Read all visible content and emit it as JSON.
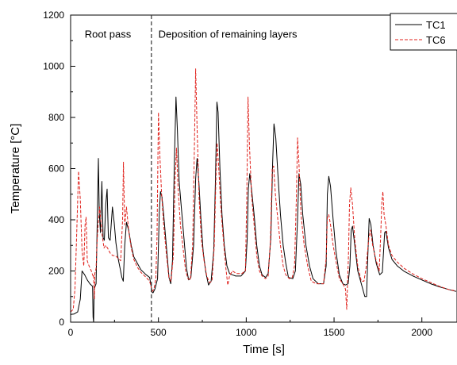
{
  "chart_data": {
    "type": "line",
    "xlabel": "Time [s]",
    "ylabel": "Temperature [°C]",
    "xlim": [
      0,
      2200
    ],
    "ylim": [
      0,
      1200
    ],
    "x_ticks": [
      0,
      500,
      1000,
      1500,
      2000
    ],
    "y_ticks": [
      0,
      200,
      400,
      600,
      800,
      1000,
      1200
    ],
    "divider_x": 460,
    "annotations": [
      {
        "text": "Root pass",
        "x": 80,
        "y": 1130
      },
      {
        "text": "Deposition of remaining layers",
        "x": 500,
        "y": 1130
      }
    ],
    "legend_placement": "top-right",
    "series": [
      {
        "name": "TC1",
        "color": "#000000",
        "dash": "solid",
        "points": [
          [
            0,
            30
          ],
          [
            20,
            32
          ],
          [
            40,
            40
          ],
          [
            55,
            90
          ],
          [
            65,
            200
          ],
          [
            80,
            185
          ],
          [
            95,
            165
          ],
          [
            110,
            150
          ],
          [
            125,
            140
          ],
          [
            128,
            20
          ],
          [
            131,
            0
          ],
          [
            134,
            130
          ],
          [
            145,
            150
          ],
          [
            152,
            400
          ],
          [
            158,
            640
          ],
          [
            163,
            430
          ],
          [
            170,
            350
          ],
          [
            178,
            550
          ],
          [
            185,
            330
          ],
          [
            192,
            320
          ],
          [
            200,
            460
          ],
          [
            208,
            520
          ],
          [
            215,
            330
          ],
          [
            225,
            320
          ],
          [
            238,
            450
          ],
          [
            248,
            390
          ],
          [
            258,
            310
          ],
          [
            270,
            250
          ],
          [
            282,
            210
          ],
          [
            292,
            175
          ],
          [
            300,
            160
          ],
          [
            308,
            300
          ],
          [
            318,
            390
          ],
          [
            330,
            360
          ],
          [
            345,
            300
          ],
          [
            360,
            255
          ],
          [
            380,
            230
          ],
          [
            400,
            205
          ],
          [
            430,
            185
          ],
          [
            450,
            175
          ],
          [
            465,
            115
          ],
          [
            470,
            115
          ],
          [
            480,
            130
          ],
          [
            495,
            170
          ],
          [
            505,
            430
          ],
          [
            512,
            510
          ],
          [
            520,
            490
          ],
          [
            530,
            420
          ],
          [
            545,
            300
          ],
          [
            560,
            175
          ],
          [
            570,
            150
          ],
          [
            580,
            240
          ],
          [
            590,
            600
          ],
          [
            600,
            880
          ],
          [
            608,
            750
          ],
          [
            618,
            550
          ],
          [
            630,
            450
          ],
          [
            645,
            330
          ],
          [
            660,
            210
          ],
          [
            672,
            165
          ],
          [
            685,
            175
          ],
          [
            700,
            300
          ],
          [
            712,
            560
          ],
          [
            720,
            640
          ],
          [
            730,
            550
          ],
          [
            742,
            400
          ],
          [
            755,
            275
          ],
          [
            770,
            195
          ],
          [
            785,
            145
          ],
          [
            800,
            160
          ],
          [
            815,
            280
          ],
          [
            825,
            560
          ],
          [
            833,
            860
          ],
          [
            840,
            820
          ],
          [
            850,
            600
          ],
          [
            862,
            420
          ],
          [
            875,
            300
          ],
          [
            890,
            220
          ],
          [
            905,
            190
          ],
          [
            920,
            185
          ],
          [
            940,
            180
          ],
          [
            970,
            180
          ],
          [
            995,
            200
          ],
          [
            1005,
            320
          ],
          [
            1012,
            520
          ],
          [
            1020,
            580
          ],
          [
            1030,
            520
          ],
          [
            1045,
            420
          ],
          [
            1060,
            300
          ],
          [
            1075,
            220
          ],
          [
            1090,
            185
          ],
          [
            1110,
            175
          ],
          [
            1125,
            190
          ],
          [
            1140,
            330
          ],
          [
            1150,
            620
          ],
          [
            1158,
            775
          ],
          [
            1168,
            720
          ],
          [
            1180,
            580
          ],
          [
            1195,
            420
          ],
          [
            1210,
            300
          ],
          [
            1225,
            230
          ],
          [
            1240,
            175
          ],
          [
            1265,
            170
          ],
          [
            1280,
            200
          ],
          [
            1292,
            400
          ],
          [
            1300,
            580
          ],
          [
            1310,
            540
          ],
          [
            1322,
            420
          ],
          [
            1340,
            300
          ],
          [
            1360,
            220
          ],
          [
            1380,
            170
          ],
          [
            1410,
            150
          ],
          [
            1440,
            150
          ],
          [
            1455,
            220
          ],
          [
            1462,
            500
          ],
          [
            1470,
            570
          ],
          [
            1480,
            530
          ],
          [
            1495,
            400
          ],
          [
            1510,
            280
          ],
          [
            1530,
            185
          ],
          [
            1550,
            150
          ],
          [
            1565,
            145
          ],
          [
            1580,
            150
          ],
          [
            1590,
            220
          ],
          [
            1598,
            360
          ],
          [
            1605,
            375
          ],
          [
            1618,
            300
          ],
          [
            1635,
            200
          ],
          [
            1655,
            150
          ],
          [
            1675,
            100
          ],
          [
            1685,
            100
          ],
          [
            1692,
            250
          ],
          [
            1700,
            405
          ],
          [
            1710,
            380
          ],
          [
            1722,
            300
          ],
          [
            1740,
            230
          ],
          [
            1760,
            185
          ],
          [
            1775,
            195
          ],
          [
            1782,
            280
          ],
          [
            1788,
            350
          ],
          [
            1795,
            355
          ],
          [
            1810,
            290
          ],
          [
            1830,
            245
          ],
          [
            1860,
            220
          ],
          [
            1900,
            198
          ],
          [
            1950,
            180
          ],
          [
            2000,
            165
          ],
          [
            2050,
            150
          ],
          [
            2100,
            138
          ],
          [
            2150,
            128
          ],
          [
            2195,
            120
          ]
        ]
      },
      {
        "name": "TC6",
        "color": "#e0201b",
        "dash": "4,2",
        "points": [
          [
            0,
            40
          ],
          [
            15,
            50
          ],
          [
            25,
            130
          ],
          [
            35,
            350
          ],
          [
            45,
            590
          ],
          [
            55,
            480
          ],
          [
            65,
            280
          ],
          [
            75,
            220
          ],
          [
            82,
            380
          ],
          [
            88,
            410
          ],
          [
            95,
            240
          ],
          [
            105,
            220
          ],
          [
            118,
            200
          ],
          [
            128,
            180
          ],
          [
            131,
            185
          ],
          [
            135,
            90
          ],
          [
            138,
            190
          ],
          [
            145,
            210
          ],
          [
            152,
            330
          ],
          [
            158,
            390
          ],
          [
            165,
            450
          ],
          [
            172,
            400
          ],
          [
            180,
            340
          ],
          [
            190,
            290
          ],
          [
            200,
            300
          ],
          [
            210,
            290
          ],
          [
            225,
            270
          ],
          [
            240,
            260
          ],
          [
            255,
            260
          ],
          [
            270,
            250
          ],
          [
            285,
            240
          ],
          [
            296,
            400
          ],
          [
            301,
            625
          ],
          [
            308,
            380
          ],
          [
            318,
            450
          ],
          [
            330,
            360
          ],
          [
            345,
            290
          ],
          [
            360,
            245
          ],
          [
            380,
            215
          ],
          [
            400,
            195
          ],
          [
            430,
            175
          ],
          [
            450,
            160
          ],
          [
            465,
            120
          ],
          [
            475,
            130
          ],
          [
            485,
            170
          ],
          [
            492,
            330
          ],
          [
            500,
            820
          ],
          [
            508,
            650
          ],
          [
            518,
            500
          ],
          [
            530,
            380
          ],
          [
            545,
            270
          ],
          [
            560,
            170
          ],
          [
            572,
            160
          ],
          [
            585,
            260
          ],
          [
            595,
            560
          ],
          [
            603,
            680
          ],
          [
            612,
            520
          ],
          [
            625,
            380
          ],
          [
            640,
            290
          ],
          [
            655,
            200
          ],
          [
            668,
            170
          ],
          [
            682,
            165
          ],
          [
            695,
            300
          ],
          [
            705,
            700
          ],
          [
            712,
            990
          ],
          [
            720,
            760
          ],
          [
            732,
            480
          ],
          [
            745,
            320
          ],
          [
            760,
            240
          ],
          [
            775,
            180
          ],
          [
            790,
            155
          ],
          [
            805,
            160
          ],
          [
            818,
            300
          ],
          [
            826,
            520
          ],
          [
            834,
            700
          ],
          [
            842,
            620
          ],
          [
            855,
            450
          ],
          [
            870,
            320
          ],
          [
            885,
            205
          ],
          [
            895,
            145
          ],
          [
            905,
            180
          ],
          [
            920,
            200
          ],
          [
            945,
            190
          ],
          [
            975,
            190
          ],
          [
            995,
            200
          ],
          [
            1003,
            480
          ],
          [
            1010,
            880
          ],
          [
            1018,
            700
          ],
          [
            1030,
            500
          ],
          [
            1045,
            380
          ],
          [
            1060,
            260
          ],
          [
            1075,
            200
          ],
          [
            1090,
            180
          ],
          [
            1110,
            170
          ],
          [
            1125,
            180
          ],
          [
            1138,
            320
          ],
          [
            1148,
            600
          ],
          [
            1156,
            610
          ],
          [
            1166,
            500
          ],
          [
            1180,
            400
          ],
          [
            1195,
            300
          ],
          [
            1210,
            220
          ],
          [
            1225,
            185
          ],
          [
            1245,
            170
          ],
          [
            1262,
            175
          ],
          [
            1275,
            220
          ],
          [
            1285,
            480
          ],
          [
            1292,
            720
          ],
          [
            1300,
            620
          ],
          [
            1312,
            420
          ],
          [
            1330,
            300
          ],
          [
            1350,
            220
          ],
          [
            1370,
            160
          ],
          [
            1400,
            150
          ],
          [
            1440,
            150
          ],
          [
            1455,
            250
          ],
          [
            1462,
            410
          ],
          [
            1470,
            420
          ],
          [
            1480,
            380
          ],
          [
            1495,
            300
          ],
          [
            1510,
            240
          ],
          [
            1530,
            170
          ],
          [
            1550,
            150
          ],
          [
            1565,
            130
          ],
          [
            1572,
            50
          ],
          [
            1576,
            140
          ],
          [
            1582,
            260
          ],
          [
            1588,
            460
          ],
          [
            1595,
            525
          ],
          [
            1605,
            460
          ],
          [
            1618,
            320
          ],
          [
            1635,
            220
          ],
          [
            1655,
            160
          ],
          [
            1670,
            160
          ],
          [
            1682,
            210
          ],
          [
            1690,
            270
          ],
          [
            1698,
            330
          ],
          [
            1708,
            360
          ],
          [
            1720,
            300
          ],
          [
            1740,
            240
          ],
          [
            1757,
            200
          ],
          [
            1765,
            330
          ],
          [
            1772,
            470
          ],
          [
            1778,
            510
          ],
          [
            1785,
            420
          ],
          [
            1795,
            380
          ],
          [
            1810,
            300
          ],
          [
            1830,
            260
          ],
          [
            1860,
            235
          ],
          [
            1900,
            210
          ],
          [
            1950,
            188
          ],
          [
            2000,
            170
          ],
          [
            2050,
            155
          ],
          [
            2100,
            140
          ],
          [
            2150,
            128
          ],
          [
            2195,
            122
          ]
        ]
      }
    ]
  }
}
